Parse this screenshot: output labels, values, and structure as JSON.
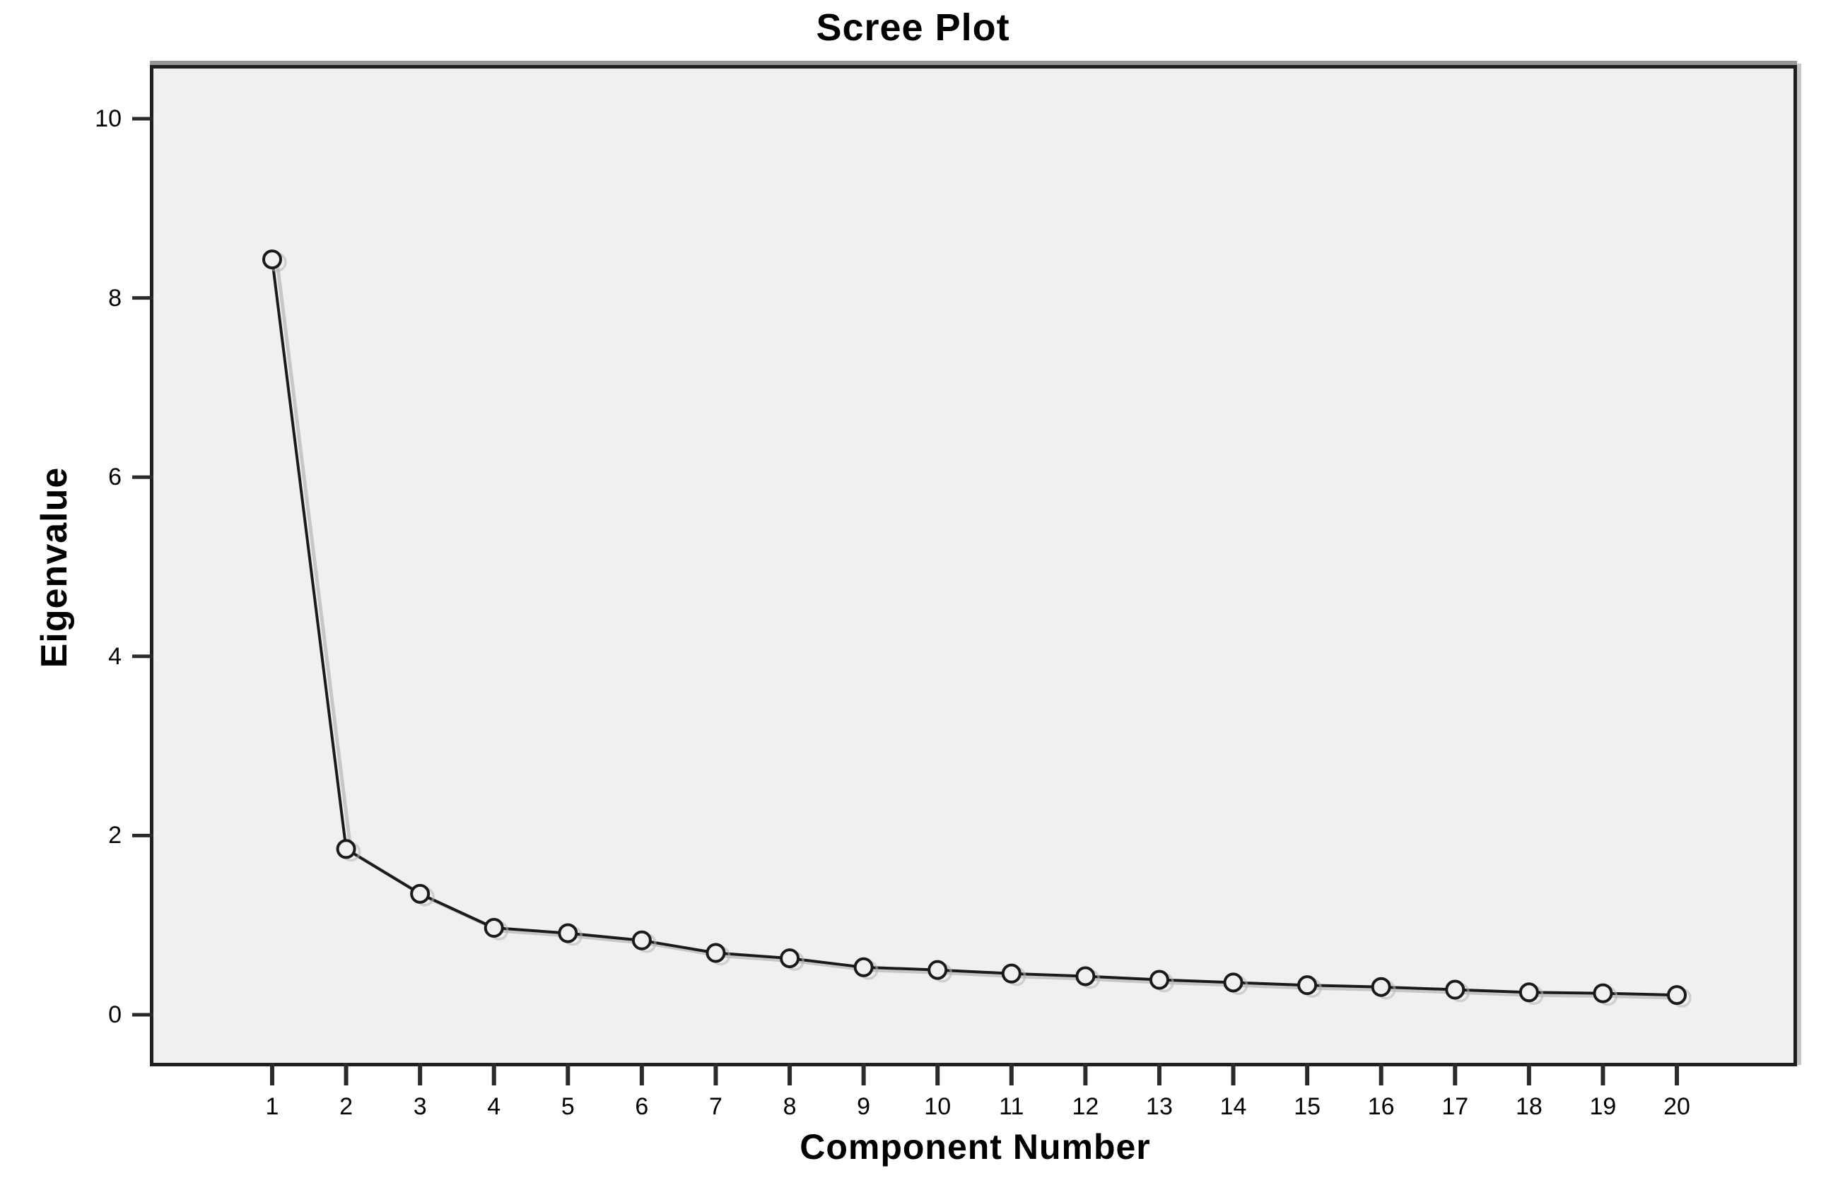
{
  "chart_data": {
    "type": "line",
    "title": "Scree Plot",
    "xlabel": "Component Number",
    "ylabel": "Eigenvalue",
    "series": [
      {
        "name": "Eigenvalue",
        "x": [
          1,
          2,
          3,
          4,
          5,
          6,
          7,
          8,
          9,
          10,
          11,
          12,
          13,
          14,
          15,
          16,
          17,
          18,
          19,
          20
        ],
        "values": [
          8.43,
          1.85,
          1.35,
          0.97,
          0.91,
          0.83,
          0.69,
          0.63,
          0.53,
          0.5,
          0.46,
          0.43,
          0.39,
          0.36,
          0.33,
          0.31,
          0.28,
          0.25,
          0.24,
          0.22
        ]
      }
    ],
    "x_tick_labels": [
      "1",
      "2",
      "3",
      "4",
      "5",
      "6",
      "7",
      "8",
      "9",
      "10",
      "11",
      "12",
      "13",
      "14",
      "15",
      "16",
      "17",
      "18",
      "19",
      "20"
    ],
    "y_tick_labels": [
      "0",
      "2",
      "4",
      "6",
      "8",
      "10"
    ],
    "y_tick_values": [
      0,
      2,
      4,
      6,
      8,
      10
    ],
    "ylim": [
      0,
      10
    ],
    "xlim": [
      1,
      20
    ],
    "grid": false,
    "legend_position": "none",
    "marker": "open-circle",
    "colors": {
      "line": "#1a1a1a",
      "marker_stroke": "#1a1a1a",
      "marker_fill": "#f0f0f0",
      "tick": "#2a2a2a",
      "plot_background": "#f0f0f0",
      "page_background": "#ffffff",
      "text": "#000000"
    }
  }
}
